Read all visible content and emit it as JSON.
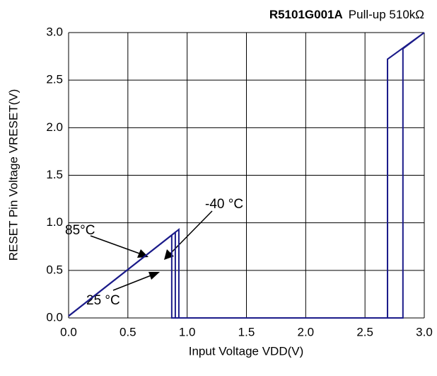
{
  "chart_data": {
    "type": "line",
    "title": "R5101G001A",
    "subtitle": "Pull-up 510kΩ",
    "x_label": "Input Voltage VDD(V)",
    "y_label": "RESET Pin Voltage VRESET(V)",
    "series": [
      {
        "name": "85°C",
        "color": "#1c1c8a",
        "x": [
          0,
          0.87,
          0.87,
          2.69,
          2.69,
          3.0
        ],
        "values": [
          0.02,
          0.87,
          0,
          0,
          2.72,
          3.0
        ]
      },
      {
        "name": "25 °C",
        "color": "#1c1c8a",
        "x": [
          0,
          0.9,
          0.9,
          2.69,
          2.69,
          3.0
        ],
        "values": [
          0.02,
          0.9,
          0,
          0,
          2.72,
          3.0
        ]
      },
      {
        "name": "-40 °C",
        "color": "#1c1c8a",
        "x": [
          0,
          0.93,
          0.93,
          2.82,
          2.82,
          3.0
        ],
        "values": [
          0.02,
          0.93,
          0,
          0,
          2.83,
          3.0
        ]
      }
    ],
    "xlim": [
      0,
      3
    ],
    "ylim": [
      0,
      3
    ],
    "xticks": [
      {
        "value": 0,
        "label": "0.0"
      },
      0.5,
      {
        "value": 1,
        "label": "1.0"
      },
      1.5,
      {
        "value": 2,
        "label": "2.0"
      },
      2.5,
      {
        "value": 3,
        "label": "3.0"
      }
    ],
    "yticks": [
      {
        "value": 0,
        "label": "0.0"
      },
      0.5,
      {
        "value": 1,
        "label": "1.0"
      },
      1.5,
      {
        "value": 2,
        "label": "2.0"
      },
      2.5,
      {
        "value": 3,
        "label": "3.0"
      }
    ],
    "grid": true
  }
}
